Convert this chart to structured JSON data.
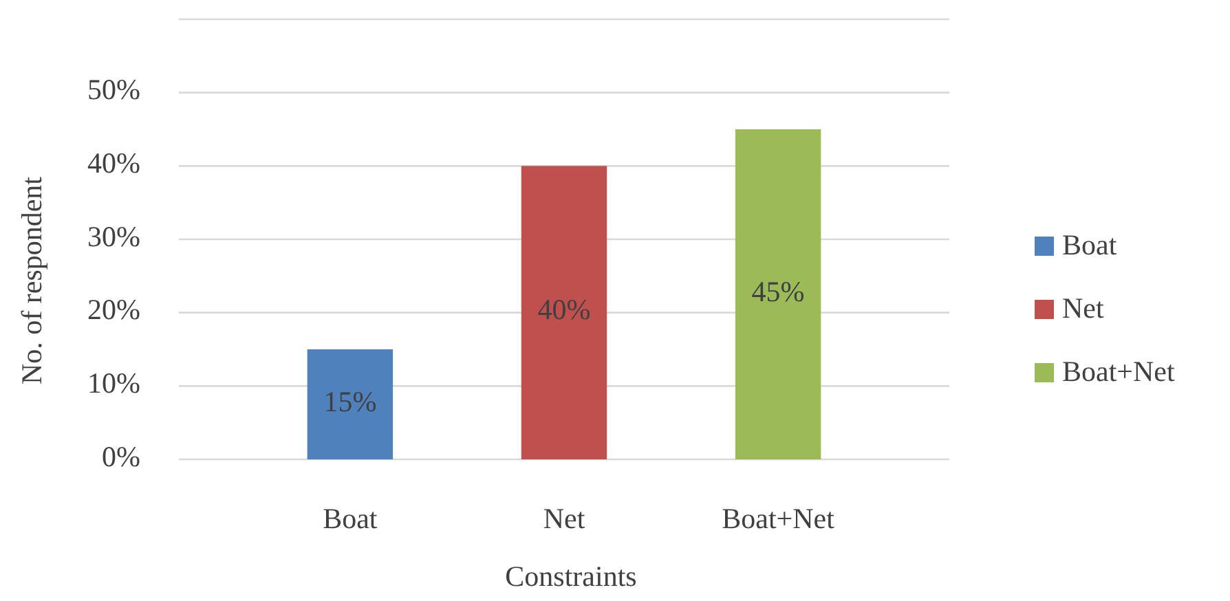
{
  "chart_data": {
    "type": "bar",
    "xlabel": "Constraints",
    "ylabel": "No. of respondent",
    "categories": [
      "Boat",
      "Net",
      "Boat+Net"
    ],
    "series": [
      {
        "name": "Boat",
        "color": "#4f81bd",
        "values": [
          15,
          null,
          null
        ],
        "value_labels": [
          "15%",
          null,
          null
        ]
      },
      {
        "name": "Net",
        "color": "#c0504d",
        "values": [
          null,
          40,
          null
        ],
        "value_labels": [
          null,
          "40%",
          null
        ]
      },
      {
        "name": "Boat+Net",
        "color": "#9bbb59",
        "values": [
          null,
          null,
          45
        ],
        "value_labels": [
          null,
          null,
          "45%"
        ]
      }
    ],
    "ylim": [
      0,
      60
    ],
    "yticks": [
      {
        "value": 0,
        "label": "0%"
      },
      {
        "value": 10,
        "label": "10%"
      },
      {
        "value": 20,
        "label": "20%"
      },
      {
        "value": 30,
        "label": "30%"
      },
      {
        "value": 40,
        "label": "40%"
      },
      {
        "value": 50,
        "label": "50%"
      },
      {
        "value": 60,
        "label": null
      }
    ],
    "grid": true,
    "legend": "right"
  }
}
